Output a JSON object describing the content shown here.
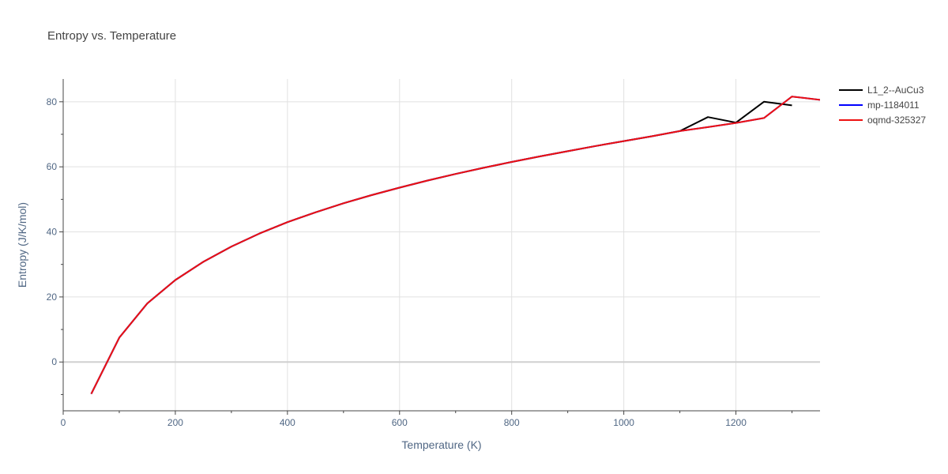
{
  "chart_data": {
    "type": "line",
    "title": "Entropy vs. Temperature",
    "xlabel": "Temperature (K)",
    "ylabel": "Entropy (J/K/mol)",
    "xlim": [
      0,
      1350
    ],
    "ylim": [
      -15,
      87
    ],
    "xticks": [
      0,
      200,
      400,
      600,
      800,
      1000,
      1200
    ],
    "yticks": [
      0,
      20,
      40,
      60,
      80
    ],
    "grid": true,
    "legend_position": "top-right",
    "series": [
      {
        "name": "L1_2--AuCu3",
        "color": "#000000",
        "x": [
          50,
          100,
          150,
          200,
          250,
          300,
          350,
          400,
          450,
          500,
          550,
          600,
          650,
          700,
          750,
          800,
          850,
          900,
          950,
          1000,
          1050,
          1100,
          1150,
          1200,
          1250,
          1300
        ],
        "y": [
          -9.8,
          7.5,
          18.0,
          25.2,
          30.8,
          35.5,
          39.5,
          43.0,
          46.0,
          48.8,
          51.3,
          53.6,
          55.8,
          57.8,
          59.7,
          61.5,
          63.2,
          64.8,
          66.4,
          67.9,
          69.4,
          71.0,
          75.3,
          73.6,
          80.0,
          78.9
        ]
      },
      {
        "name": "mp-1184011",
        "color": "#0000ff",
        "x": [
          50,
          100,
          150,
          200,
          250,
          300,
          350,
          400,
          450,
          500,
          550,
          600,
          650,
          700,
          750,
          800,
          850,
          900,
          950,
          1000,
          1050,
          1100,
          1150,
          1200,
          1250,
          1300,
          1350
        ],
        "y": [
          -9.8,
          7.5,
          18.0,
          25.2,
          30.8,
          35.5,
          39.5,
          43.0,
          46.0,
          48.8,
          51.3,
          53.6,
          55.8,
          57.8,
          59.7,
          61.5,
          63.2,
          64.8,
          66.4,
          67.9,
          69.4,
          71.0,
          72.2,
          73.5,
          75.0,
          81.6,
          80.6
        ]
      },
      {
        "name": "oqmd-325327",
        "color": "#ee1111",
        "x": [
          50,
          100,
          150,
          200,
          250,
          300,
          350,
          400,
          450,
          500,
          550,
          600,
          650,
          700,
          750,
          800,
          850,
          900,
          950,
          1000,
          1050,
          1100,
          1150,
          1200,
          1250,
          1300,
          1350
        ],
        "y": [
          -9.8,
          7.5,
          18.0,
          25.2,
          30.8,
          35.5,
          39.5,
          43.0,
          46.0,
          48.8,
          51.3,
          53.6,
          55.8,
          57.8,
          59.7,
          61.5,
          63.2,
          64.8,
          66.4,
          67.9,
          69.4,
          71.0,
          72.2,
          73.5,
          75.0,
          81.6,
          80.6
        ]
      }
    ]
  }
}
